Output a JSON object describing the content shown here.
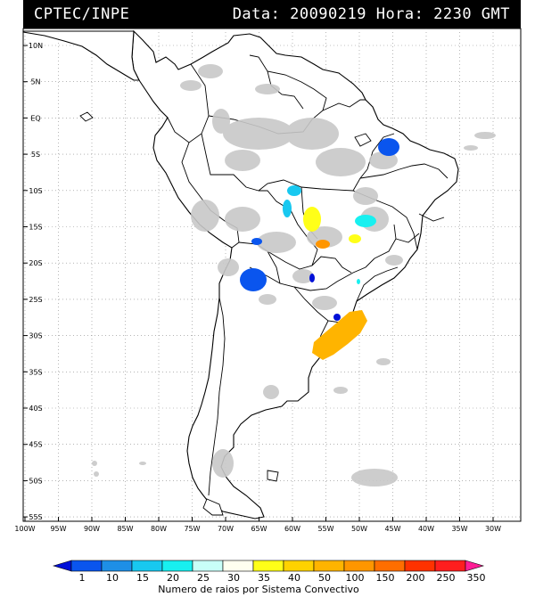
{
  "header": {
    "source": "CPTEC/INPE",
    "datetime": "Data: 20090219 Hora: 2230 GMT"
  },
  "map": {
    "lat_labels": [
      "10N",
      "5N",
      "EQ",
      "5S",
      "10S",
      "15S",
      "20S",
      "25S",
      "30S",
      "35S",
      "40S",
      "45S",
      "50S",
      "55S"
    ],
    "lon_labels": [
      "100W",
      "95W",
      "90W",
      "85W",
      "80W",
      "75W",
      "70W",
      "65W",
      "60W",
      "55W",
      "50W",
      "45W",
      "40W",
      "35W",
      "30W"
    ]
  },
  "legend": {
    "title": "Numero de raios por Sistema Convectivo",
    "ticks": [
      "1",
      "10",
      "15",
      "20",
      "25",
      "30",
      "35",
      "40",
      "50",
      "100",
      "150",
      "200",
      "250",
      "350"
    ],
    "colors": [
      "#0010d8",
      "#0a55ee",
      "#1e8fe6",
      "#18c8f0",
      "#18f0f0",
      "#c8fff8",
      "#fffff0",
      "#ffff18",
      "#ffd200",
      "#ffb400",
      "#ff9600",
      "#ff6e00",
      "#ff3200",
      "#ff1e1e",
      "#ff1e96"
    ]
  }
}
